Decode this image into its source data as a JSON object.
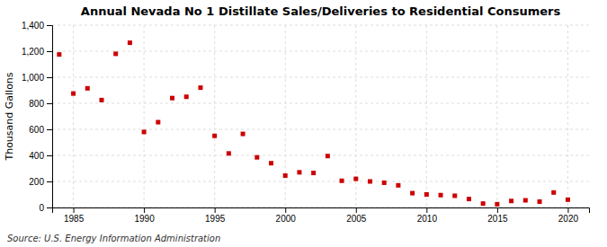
{
  "chart_data": {
    "type": "scatter",
    "title": "Annual Nevada No 1 Distillate Sales/Deliveries to Residential Consumers",
    "ylabel": "Thousand Gallons",
    "source": "Source: U.S. Energy Information Administration",
    "color": "#cc0000",
    "marker": "square",
    "grid": true,
    "xlim": [
      1983.5,
      2021.5
    ],
    "ylim": [
      0,
      1400
    ],
    "xticks": [
      1985,
      1990,
      1995,
      2000,
      2005,
      2010,
      2015,
      2020
    ],
    "yticks": [
      0,
      200,
      400,
      600,
      800,
      {
        "value": 1000,
        "label": "1,000"
      },
      {
        "value": 1200,
        "label": "1,200"
      },
      {
        "value": 1400,
        "label": "1,400"
      }
    ],
    "x": [
      1984,
      1985,
      1986,
      1987,
      1988,
      1989,
      1990,
      1991,
      1992,
      1993,
      1994,
      1995,
      1996,
      1997,
      1998,
      1999,
      2000,
      2001,
      2002,
      2003,
      2004,
      2005,
      2006,
      2007,
      2008,
      2009,
      2010,
      2011,
      2012,
      2013,
      2014,
      2015,
      2016,
      2017,
      2018,
      2019,
      2020
    ],
    "values": [
      1175,
      875,
      915,
      825,
      1180,
      1265,
      580,
      655,
      840,
      850,
      920,
      550,
      415,
      565,
      385,
      340,
      245,
      270,
      265,
      395,
      205,
      220,
      200,
      190,
      170,
      110,
      100,
      95,
      90,
      65,
      30,
      25,
      50,
      55,
      45,
      115,
      60
    ]
  }
}
